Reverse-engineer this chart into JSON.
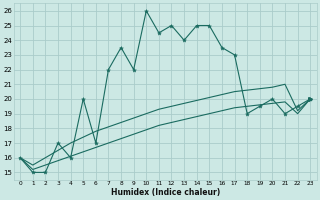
{
  "xlabel": "Humidex (Indice chaleur)",
  "bg_color": "#cce8e4",
  "grid_color": "#aaccca",
  "line_color": "#1a6b60",
  "x_main": [
    0,
    1,
    2,
    3,
    4,
    5,
    6,
    7,
    8,
    9,
    10,
    11,
    12,
    13,
    14,
    15,
    16,
    17,
    18,
    19,
    20,
    21,
    22,
    23
  ],
  "y_main": [
    16,
    15,
    15,
    17,
    16,
    20,
    17,
    22,
    23.5,
    22,
    26,
    24.5,
    25,
    24,
    25,
    25,
    23.5,
    23,
    19,
    19.5,
    20,
    19,
    19.5,
    20
  ],
  "x_low": [
    0,
    1,
    2,
    3,
    4,
    5,
    6,
    7,
    8,
    9,
    10,
    11,
    12,
    13,
    14,
    15,
    16,
    17,
    18,
    19,
    20,
    21,
    22,
    23
  ],
  "y_low": [
    16,
    15.2,
    15.5,
    15.8,
    16.1,
    16.4,
    16.7,
    17.0,
    17.3,
    17.6,
    17.9,
    18.2,
    18.4,
    18.6,
    18.8,
    19.0,
    19.2,
    19.4,
    19.5,
    19.6,
    19.7,
    19.8,
    19.0,
    20
  ],
  "x_high": [
    0,
    1,
    2,
    3,
    4,
    5,
    6,
    7,
    8,
    9,
    10,
    11,
    12,
    13,
    14,
    15,
    16,
    17,
    18,
    19,
    20,
    21,
    22,
    23
  ],
  "y_high": [
    16,
    15.5,
    16.0,
    16.5,
    17.0,
    17.4,
    17.8,
    18.1,
    18.4,
    18.7,
    19.0,
    19.3,
    19.5,
    19.7,
    19.9,
    20.1,
    20.3,
    20.5,
    20.6,
    20.7,
    20.8,
    21.0,
    19.2,
    20
  ],
  "ylim": [
    14.5,
    26.5
  ],
  "xlim": [
    -0.5,
    23.5
  ],
  "yticks": [
    15,
    16,
    17,
    18,
    19,
    20,
    21,
    22,
    23,
    24,
    25,
    26
  ],
  "xticks": [
    0,
    1,
    2,
    3,
    4,
    5,
    6,
    7,
    8,
    9,
    10,
    11,
    12,
    13,
    14,
    15,
    16,
    17,
    18,
    19,
    20,
    21,
    22,
    23
  ]
}
